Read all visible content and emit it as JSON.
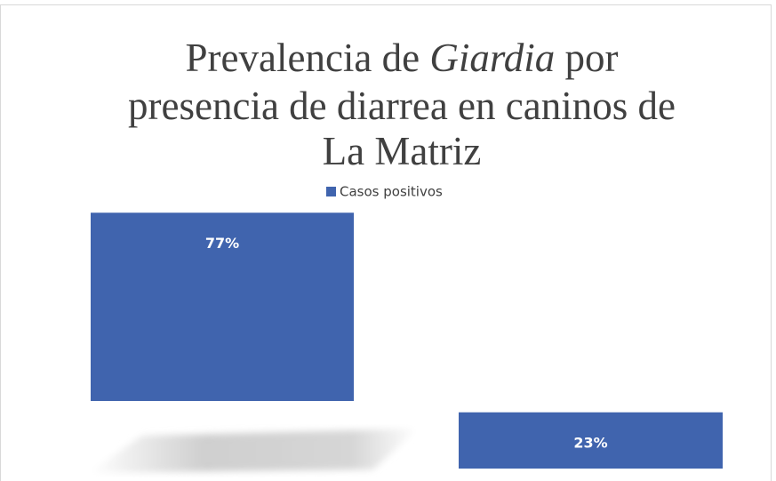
{
  "chart_data": {
    "type": "bar",
    "title": [
      "Prevalencia de ",
      "Giardia",
      " por",
      "presencia de diarrea en caninos de",
      "La Matriz"
    ],
    "categories": [
      null,
      null
    ],
    "series": [
      {
        "name": "Casos positivos",
        "color": "#4064ae",
        "values": [
          77,
          23
        ],
        "value_labels": [
          "77%",
          "23%"
        ]
      }
    ],
    "ylim": [
      0,
      100
    ],
    "legend": "top"
  }
}
